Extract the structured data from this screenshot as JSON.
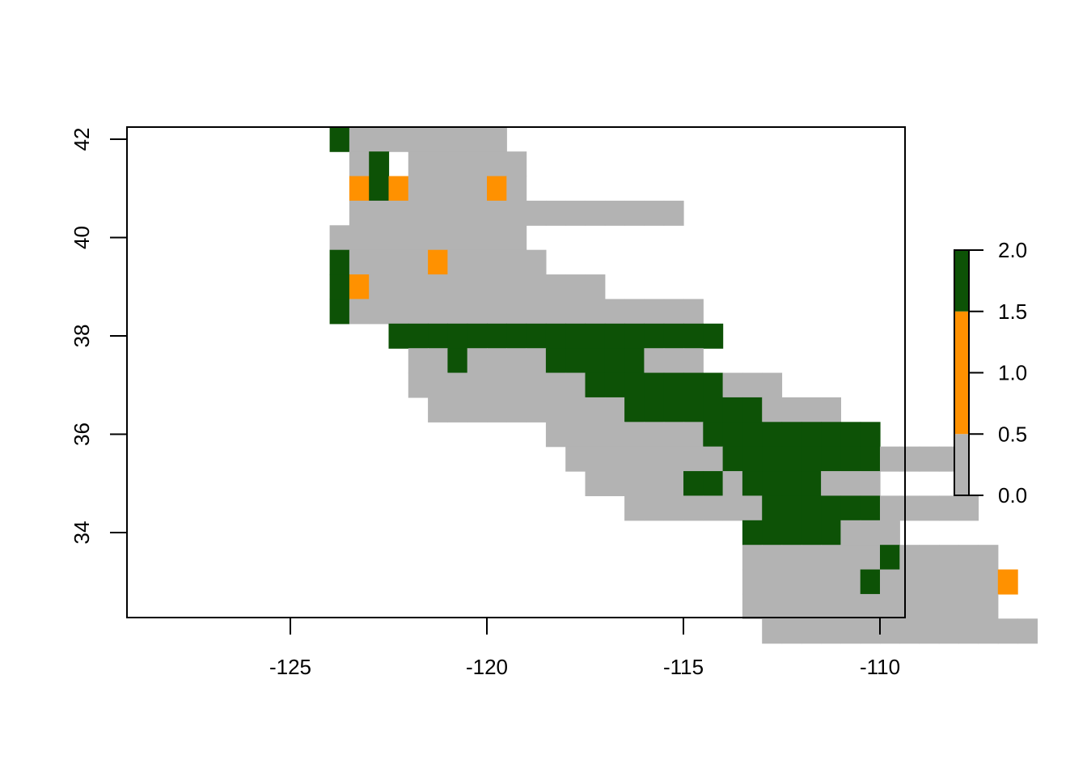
{
  "chart_data": {
    "type": "heatmap",
    "title": "",
    "xlabel": "",
    "ylabel": "",
    "x_ticks": [
      "-125",
      "-120",
      "-115",
      "-110"
    ],
    "y_ticks": [
      "34",
      "36",
      "38",
      "40",
      "42"
    ],
    "xlim": [
      -129.2,
      -109.35
    ],
    "ylim": [
      32.3,
      42.25
    ],
    "cell_size": 0.5,
    "grid_origin": {
      "lon": -125,
      "lat": 42.25
    },
    "grid_rows": [
      "00122222222",
      "000210222222",
      "000313222232",
      "00022222222222222222",
      "002222222222",
      "0012222322222",
      "0013222222222222",
      "001222222222222222222",
      "0000011111111111111111",
      "000000221222211111222",
      "0000002222222221111111222",
      "0000000222222222211111112222",
      "000000000000022222222111111111",
      "0000000000000022222222111111112222",
      "000000000000000222221121111222",
      "00000000000000000222222211111122222",
      "0000000000000000000000011111222",
      "000000000000000000000002222222122222",
      "0000000000000000000000022222212222223",
      "000000000000000000000002222222222222",
      "00000000000000000000000022222222222222"
    ],
    "legend": {
      "ticks": [
        "0.0",
        "0.5",
        "1.0",
        "1.5",
        "2.0"
      ],
      "bands": [
        {
          "range": [
            0,
            0.5
          ],
          "color": "#b3b3b3"
        },
        {
          "range": [
            0.5,
            1.5
          ],
          "color": "#ff9100"
        },
        {
          "range": [
            1.5,
            2
          ],
          "color": "#0d5206"
        }
      ],
      "placement": "right"
    },
    "colors": {
      "0": "#b3b3b3",
      "1": "#0d5206",
      "2": "#b3b3b3",
      "3": "#ff9100"
    }
  }
}
